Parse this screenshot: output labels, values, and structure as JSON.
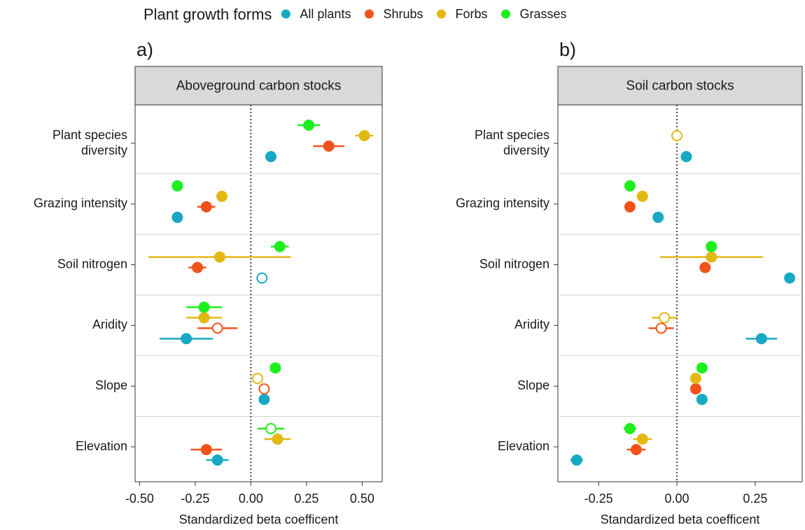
{
  "chart_data": [
    {
      "type": "dot",
      "tag": "a)",
      "title": "Aboveground carbon stocks",
      "legend_title": "Plant growth forms",
      "xlabel": "Standardized beta coefficent",
      "categories": [
        "Plant species\ndiversity",
        "Grazing intensity",
        "Soil nitrogen",
        "Aridity",
        "Slope",
        "Elevation"
      ],
      "xlim": [
        -0.52,
        0.59
      ],
      "xticks": [
        {
          "value": -0.5,
          "label": "-0.50"
        },
        {
          "value": -0.25,
          "label": "-0.25"
        },
        {
          "value": 0,
          "label": "0.00"
        },
        {
          "value": 0.25,
          "label": "0.25"
        },
        {
          "value": 0.5,
          "label": "0.50"
        }
      ],
      "ref_line": 0,
      "series": [
        {
          "name": "All plants",
          "color": "#17a9c3",
          "values": [
            0.09,
            -0.33,
            0.05,
            -0.29,
            0.06,
            -0.15
          ],
          "errors": [
            0.02,
            0.02,
            0.02,
            0.12,
            0.02,
            0.05
          ],
          "filled": [
            true,
            true,
            false,
            true,
            true,
            true
          ]
        },
        {
          "name": "Shrubs",
          "color": "#f1521c",
          "values": [
            0.35,
            -0.2,
            -0.24,
            -0.15,
            0.06,
            -0.2
          ],
          "errors": [
            0.07,
            0.04,
            0.04,
            0.09,
            0.02,
            0.07
          ],
          "filled": [
            true,
            true,
            true,
            false,
            false,
            true
          ]
        },
        {
          "name": "Forbs",
          "color": "#e4b813",
          "values": [
            0.51,
            -0.13,
            -0.14,
            -0.21,
            0.03,
            0.12
          ],
          "errors": [
            0.04,
            0.02,
            0.32,
            0.08,
            0.02,
            0.06
          ],
          "filled": [
            true,
            true,
            true,
            true,
            false,
            true
          ]
        },
        {
          "name": "Grasses",
          "color": "#1eee1e",
          "values": [
            0.26,
            -0.33,
            0.13,
            -0.21,
            0.11,
            0.09
          ],
          "errors": [
            0.05,
            0.02,
            0.04,
            0.08,
            0.02,
            0.06
          ],
          "filled": [
            true,
            true,
            true,
            true,
            true,
            false
          ]
        }
      ]
    },
    {
      "type": "dot",
      "tag": "b)",
      "title": "Soil carbon stocks",
      "xlabel": "Standardized beta coefficent",
      "categories": [
        "Plant species\ndiversity",
        "Grazing intensity",
        "Soil nitrogen",
        "Aridity",
        "Slope",
        "Elevation"
      ],
      "xlim": [
        -0.38,
        0.4
      ],
      "xticks": [
        {
          "value": -0.25,
          "label": "-0.25"
        },
        {
          "value": 0,
          "label": "0.00"
        },
        {
          "value": 0.25,
          "label": "0.25"
        }
      ],
      "ref_line": 0,
      "series": [
        {
          "name": "All plants",
          "color": "#17a9c3",
          "values": [
            0.03,
            -0.06,
            0.36,
            0.27,
            0.08,
            -0.32
          ],
          "errors": [
            0.01,
            0.01,
            0.01,
            0.05,
            0.01,
            0.02
          ],
          "filled": [
            true,
            true,
            true,
            true,
            true,
            true
          ]
        },
        {
          "name": "Shrubs",
          "color": "#f1521c",
          "values": [
            null,
            -0.15,
            0.09,
            -0.05,
            0.06,
            -0.13
          ],
          "errors": [
            null,
            0.01,
            0.01,
            0.04,
            0.01,
            0.03
          ],
          "filled": [
            null,
            true,
            true,
            false,
            true,
            true
          ]
        },
        {
          "name": "Forbs",
          "color": "#e4b813",
          "values": [
            0,
            -0.11,
            0.11,
            -0.04,
            0.06,
            -0.11
          ],
          "errors": [
            0.01,
            0.01,
            0.165,
            0.04,
            0.01,
            0.03
          ],
          "filled": [
            false,
            true,
            true,
            false,
            true,
            true
          ]
        },
        {
          "name": "Grasses",
          "color": "#1eee1e",
          "values": [
            null,
            -0.15,
            0.11,
            null,
            0.08,
            -0.15
          ],
          "errors": [
            null,
            0.01,
            0.01,
            null,
            0.01,
            0.02
          ],
          "filled": [
            null,
            true,
            true,
            null,
            true,
            true
          ]
        }
      ]
    }
  ]
}
